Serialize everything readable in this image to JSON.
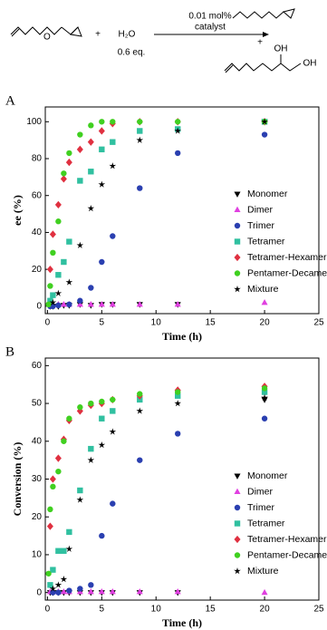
{
  "scheme": {
    "plus_1": "+",
    "water": "H₂O",
    "equiv": "0.6 eq.",
    "loading": "0.01 mol%",
    "catalyst": "catalyst",
    "plus_2": "+",
    "oh_1": "OH",
    "oh_2": "OH"
  },
  "chart_data": [
    {
      "type": "scatter",
      "panel_label": "A",
      "x_label": "Time (h)",
      "y_label": "ee (%)",
      "xlim": [
        -0.2,
        25
      ],
      "ylim": [
        -4,
        108
      ],
      "xticks": [
        0,
        5,
        10,
        15,
        20,
        25
      ],
      "yticks": [
        0,
        20,
        40,
        60,
        80,
        100
      ],
      "legend": "lower right",
      "series": [
        {
          "name": "Monomer",
          "color": "#000000",
          "marker": "triangle-down",
          "x": [
            0.25,
            0.5,
            1,
            1.5,
            2,
            3,
            4,
            5,
            6,
            8.5,
            12,
            20
          ],
          "values": [
            0,
            0,
            0,
            0.5,
            0.5,
            1,
            0.5,
            1,
            1,
            1,
            1,
            100
          ]
        },
        {
          "name": "Dimer",
          "color": "#e040e0",
          "marker": "triangle-up",
          "x": [
            0.25,
            0.5,
            1,
            1.5,
            2,
            3,
            4,
            5,
            6,
            8.5,
            12,
            20
          ],
          "values": [
            1,
            1,
            1,
            1,
            1,
            1,
            1,
            1,
            1,
            1,
            1,
            2
          ]
        },
        {
          "name": "Trimer",
          "color": "#2a3fb0",
          "marker": "circle",
          "x": [
            0.25,
            0.5,
            1,
            2,
            3,
            4,
            5,
            6,
            8.5,
            12,
            20
          ],
          "values": [
            0,
            0,
            0.5,
            1,
            3,
            10,
            24,
            38,
            64,
            83,
            93
          ]
        },
        {
          "name": "Tetramer",
          "color": "#30c0a0",
          "marker": "square",
          "x": [
            0.25,
            0.5,
            1,
            1.5,
            2,
            3,
            4,
            5,
            6,
            8.5,
            12,
            20
          ],
          "values": [
            3,
            6,
            17,
            24,
            35,
            68,
            73,
            85,
            89,
            95,
            96,
            100
          ]
        },
        {
          "name": "Tetramer-Hexamer",
          "color": "#e03040",
          "marker": "diamond",
          "x": [
            0.25,
            0.5,
            1,
            1.5,
            2,
            3,
            4,
            5,
            6,
            8.5,
            12,
            20
          ],
          "values": [
            20,
            39,
            55,
            69,
            78,
            85,
            89,
            95,
            99,
            100,
            100,
            100
          ]
        },
        {
          "name": "Pentamer-Decamer",
          "color": "#40d020",
          "marker": "circle",
          "x": [
            0.1,
            0.25,
            0.5,
            1,
            1.5,
            2,
            3,
            4,
            5,
            6,
            8.5,
            12,
            20
          ],
          "values": [
            1,
            11,
            29,
            46,
            72,
            83,
            93,
            98,
            100,
            100,
            100,
            100,
            100
          ]
        },
        {
          "name": "Mixture",
          "color": "#000000",
          "marker": "star",
          "x": [
            0.5,
            1,
            2,
            3,
            4,
            5,
            6,
            8.5,
            12,
            20
          ],
          "values": [
            2,
            7,
            13,
            33,
            53,
            66,
            76,
            90,
            95,
            100
          ]
        }
      ]
    },
    {
      "type": "scatter",
      "panel_label": "B",
      "x_label": "Time (h)",
      "y_label": "Conversion (%)",
      "xlim": [
        -0.2,
        25
      ],
      "ylim": [
        -2,
        62
      ],
      "xticks": [
        0,
        5,
        10,
        15,
        20,
        25
      ],
      "yticks": [
        0,
        10,
        20,
        30,
        40,
        50,
        60
      ],
      "legend": "lower right",
      "series": [
        {
          "name": "Monomer",
          "color": "#000000",
          "marker": "triangle-down",
          "x": [
            0.25,
            0.5,
            1,
            1.5,
            2,
            3,
            4,
            5,
            6,
            8.5,
            12,
            20
          ],
          "values": [
            0,
            0,
            0,
            0,
            0,
            0,
            0,
            0,
            0,
            0,
            0,
            51
          ]
        },
        {
          "name": "Dimer",
          "color": "#e040e0",
          "marker": "triangle-up",
          "x": [
            0.25,
            0.5,
            1,
            1.5,
            2,
            3,
            4,
            5,
            6,
            8.5,
            12,
            20
          ],
          "values": [
            0.2,
            0.2,
            0.2,
            0.2,
            0.2,
            0.2,
            0.2,
            0.2,
            0.2,
            0.2,
            0.2,
            0
          ]
        },
        {
          "name": "Trimer",
          "color": "#2a3fb0",
          "marker": "circle",
          "x": [
            0.5,
            1,
            2,
            3,
            4,
            5,
            6,
            8.5,
            12,
            20
          ],
          "values": [
            0,
            0,
            0.5,
            1,
            2,
            15,
            23.5,
            35,
            42,
            46
          ]
        },
        {
          "name": "Tetramer",
          "color": "#30c0a0",
          "marker": "square",
          "x": [
            0.25,
            0.5,
            1,
            1.5,
            2,
            3,
            4,
            5,
            6,
            8.5,
            12,
            20
          ],
          "values": [
            2,
            6,
            11,
            11,
            16,
            27,
            38,
            46,
            48,
            51,
            52,
            53
          ]
        },
        {
          "name": "Tetramer-Hexamer",
          "color": "#e03040",
          "marker": "diamond",
          "x": [
            0.25,
            0.5,
            1,
            1.5,
            2,
            3,
            4,
            5,
            6,
            8.5,
            12,
            20
          ],
          "values": [
            17.5,
            30,
            35.5,
            40.5,
            45.5,
            48,
            49.5,
            50,
            51,
            52,
            53.5,
            54.5
          ]
        },
        {
          "name": "Pentamer-Decamer",
          "color": "#40d020",
          "marker": "circle",
          "x": [
            0.1,
            0.25,
            0.5,
            1,
            1.5,
            2,
            3,
            4,
            5,
            6,
            8.5,
            12,
            20
          ],
          "values": [
            5,
            22,
            28,
            32,
            40,
            46,
            49,
            50,
            50.5,
            51,
            52.5,
            53,
            54
          ]
        },
        {
          "name": "Mixture",
          "color": "#000000",
          "marker": "star",
          "x": [
            0.5,
            1,
            1.5,
            2,
            3,
            4,
            5,
            6,
            8.5,
            12,
            20
          ],
          "values": [
            1,
            2,
            3.5,
            11.5,
            24.5,
            35,
            39,
            42.5,
            48,
            50,
            51.5
          ]
        }
      ]
    }
  ]
}
